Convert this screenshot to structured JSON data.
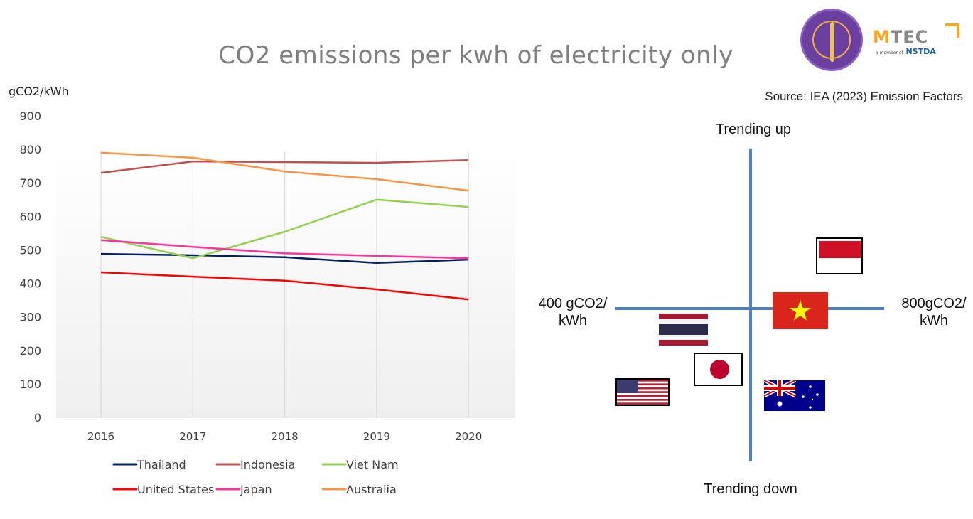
{
  "title": "CO2 emissions per kwh of electricity only",
  "source": "Source: IEA (2023) Emission Factors",
  "logos": {
    "mtec": "MTEC",
    "nstda_prefix": "a member of",
    "nstda": "NSTDA"
  },
  "chart_data": {
    "type": "line",
    "title": "CO2 emissions per kwh of electricity only",
    "ylabel": "gCO2/kWh",
    "xlabel": "",
    "categories": [
      "2016",
      "2017",
      "2018",
      "2019",
      "2020"
    ],
    "ylim": [
      0,
      900
    ],
    "yticks": [
      0,
      100,
      200,
      300,
      400,
      500,
      600,
      700,
      800,
      900
    ],
    "ytick_labels": [
      "0",
      "100",
      "200",
      "300",
      "400",
      "500",
      "600",
      "700",
      "800",
      "900"
    ],
    "grid": "vertical",
    "legend": "bottom",
    "series": [
      {
        "name": "Thailand",
        "color": "#002060",
        "values": [
          488,
          484,
          478,
          461,
          471
        ]
      },
      {
        "name": "Indonesia",
        "color": "#c0504d",
        "values": [
          730,
          764,
          762,
          760,
          768
        ]
      },
      {
        "name": "Viet Nam",
        "color": "#92d050",
        "values": [
          539,
          475,
          554,
          650,
          628
        ]
      },
      {
        "name": "United States",
        "color": "#ff0000",
        "values": [
          433,
          420,
          408,
          382,
          352
        ]
      },
      {
        "name": "Japan",
        "color": "#ff3399",
        "values": [
          529,
          509,
          490,
          482,
          475
        ]
      },
      {
        "name": "Australia",
        "color": "#f79646",
        "values": [
          790,
          775,
          734,
          711,
          677
        ]
      }
    ]
  },
  "quadrant": {
    "top_label": "Trending up",
    "bottom_label": "Trending down",
    "left_label_line1": "400 gCO2/",
    "left_label_line2": "kWh",
    "right_label_line1": "800gCO2/",
    "right_label_line2": "kWh",
    "flags": [
      {
        "country": "Indonesia",
        "quadrant": "trending-up-high"
      },
      {
        "country": "Viet Nam",
        "quadrant": "on-axis-high"
      },
      {
        "country": "Thailand",
        "quadrant": "trending-down-low"
      },
      {
        "country": "Japan",
        "quadrant": "trending-down-low"
      },
      {
        "country": "United States",
        "quadrant": "trending-down-low"
      },
      {
        "country": "Australia",
        "quadrant": "trending-down-high"
      }
    ]
  }
}
